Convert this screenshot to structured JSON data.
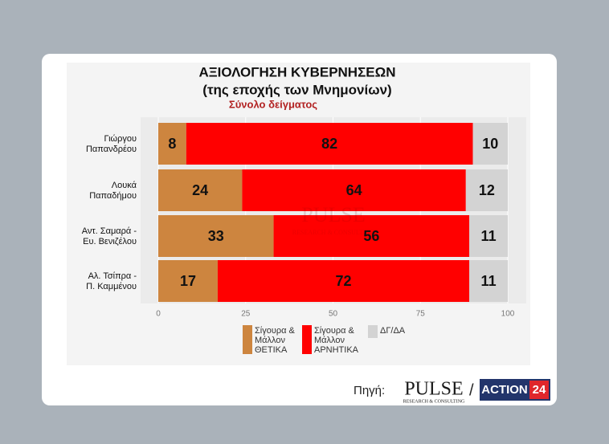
{
  "chart_data": {
    "type": "stacked-bar-horizontal",
    "title": "ΑΞΙΟΛΟΓΗΣΗ ΚΥΒΕΡΝΗΣΕΩΝ",
    "subtitle": "(της εποχής των Μνημονίων)",
    "note": "Σύνολο δείγματος",
    "categories": [
      [
        "Γιώργου",
        "Παπανδρέου"
      ],
      [
        "Λουκά",
        "Παπαδήμου"
      ],
      [
        "Αντ. Σαμαρά -",
        "Ευ. Βενιζέλου"
      ],
      [
        "Αλ. Τσίπρα -",
        "Π. Καμμένου"
      ]
    ],
    "series": [
      {
        "name": "Σίγουρα & Μάλλον ΘΕΤΙΚΑ",
        "color": "#cd853f",
        "values": [
          8,
          24,
          33,
          17
        ]
      },
      {
        "name": "Σίγουρα & Μάλλον ΑΡΝΗΤΙΚΑ",
        "color": "#ff0000",
        "values": [
          82,
          64,
          56,
          72
        ]
      },
      {
        "name": "ΔΓ/ΔΑ",
        "color": "#d3d3d3",
        "values": [
          10,
          12,
          11,
          11
        ]
      }
    ],
    "xlim": [
      0,
      100
    ],
    "xticks": [
      0,
      25,
      50,
      75,
      100
    ],
    "grid": true
  },
  "footer": {
    "source": "Πηγή:",
    "logo": "PULSE",
    "logo_sub": "RESEARCH & CONSULTING",
    "separator": "/",
    "partner": "ACTION",
    "partner_num": "24"
  }
}
